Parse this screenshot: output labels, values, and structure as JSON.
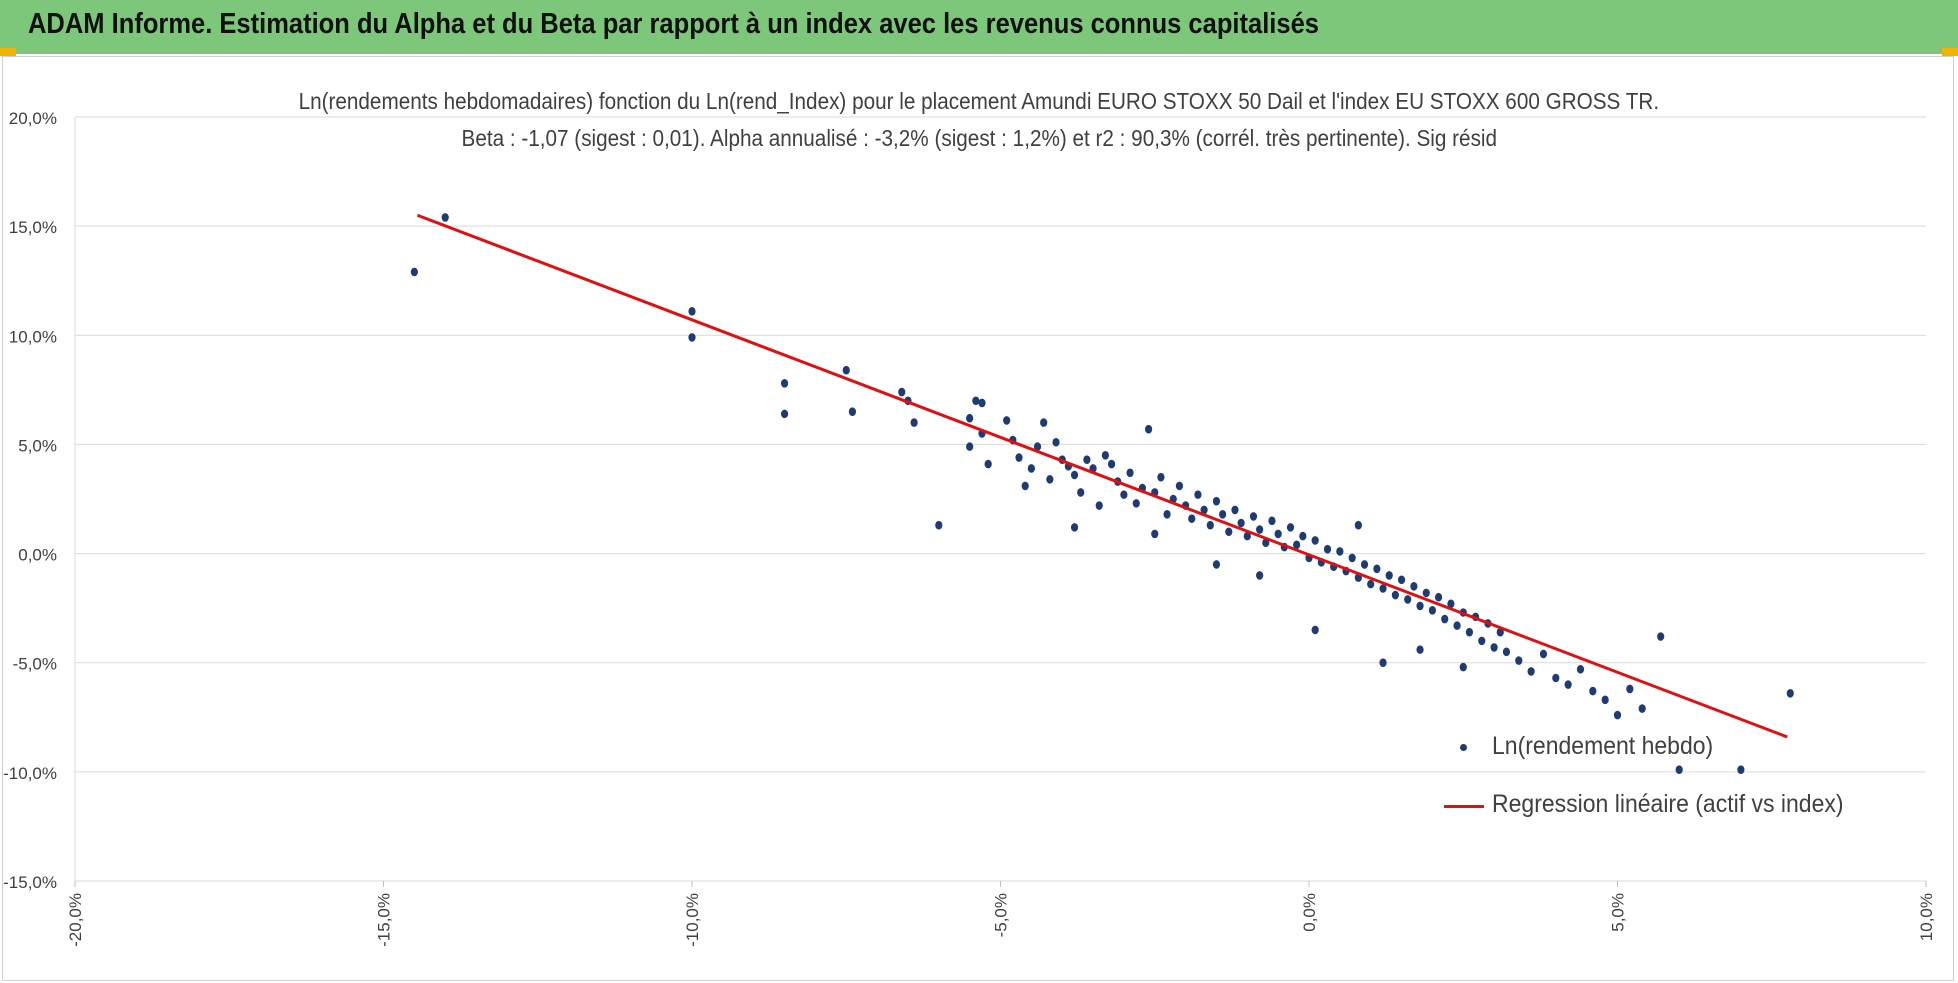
{
  "banner": {
    "title": "ADAM Informe. Estimation du Alpha et du Beta par rapport à un index avec les revenus connus capitalisés"
  },
  "colors": {
    "banner": "#7dc77b",
    "accent_corner": "#f0b400",
    "points": "#1f3b73",
    "regression": "#e01010",
    "grid": "#d9d9d9"
  },
  "chart_data": {
    "type": "scatter",
    "title": "Ln(rendements hebdomadaires) fonction du Ln(rend_Index) pour le placement Amundi EURO STOXX 50 Dail et l'index EU STOXX 600 GROSS TR.",
    "subtitle": "Beta : -1,07 (sigest : 0,01). Alpha annualisé : -3,2% (sigest : 1,2%) et r2 : 90,3% (corrél. très pertinente). Sig résid",
    "xlabel": "",
    "ylabel": "",
    "xlim": [
      -0.2,
      0.1
    ],
    "ylim": [
      -0.15,
      0.2
    ],
    "x_ticks": [
      "-20,0%",
      "-15,0%",
      "-10,0%",
      "-5,0%",
      "0,0%",
      "5,0%",
      "10,0%"
    ],
    "y_ticks": [
      "20,0%",
      "15,0%",
      "10,0%",
      "5,0%",
      "0,0%",
      "-5,0%",
      "-10,0%",
      "-15,0%"
    ],
    "grid": "horizontal",
    "legend_position": "bottom-right",
    "series": [
      {
        "name": "Ln(rendement hebdo)",
        "kind": "scatter",
        "points": [
          [
            -0.14,
            0.154
          ],
          [
            -0.145,
            0.129
          ],
          [
            -0.1,
            0.111
          ],
          [
            -0.1,
            0.099
          ],
          [
            -0.085,
            0.078
          ],
          [
            -0.085,
            0.064
          ],
          [
            -0.075,
            0.084
          ],
          [
            -0.074,
            0.065
          ],
          [
            -0.066,
            0.074
          ],
          [
            -0.065,
            0.07
          ],
          [
            -0.064,
            0.06
          ],
          [
            -0.06,
            0.013
          ],
          [
            -0.055,
            0.062
          ],
          [
            -0.055,
            0.049
          ],
          [
            -0.054,
            0.07
          ],
          [
            -0.053,
            0.069
          ],
          [
            -0.053,
            0.055
          ],
          [
            -0.052,
            0.041
          ],
          [
            -0.049,
            0.061
          ],
          [
            -0.048,
            0.052
          ],
          [
            -0.047,
            0.044
          ],
          [
            -0.046,
            0.031
          ],
          [
            -0.045,
            0.039
          ],
          [
            -0.044,
            0.049
          ],
          [
            -0.043,
            0.06
          ],
          [
            -0.042,
            0.034
          ],
          [
            -0.041,
            0.051
          ],
          [
            -0.04,
            0.043
          ],
          [
            -0.039,
            0.04
          ],
          [
            -0.038,
            0.036
          ],
          [
            -0.037,
            0.028
          ],
          [
            -0.036,
            0.043
          ],
          [
            -0.035,
            0.039
          ],
          [
            -0.034,
            0.022
          ],
          [
            -0.033,
            0.045
          ],
          [
            -0.032,
            0.041
          ],
          [
            -0.031,
            0.033
          ],
          [
            -0.03,
            0.027
          ],
          [
            -0.029,
            0.037
          ],
          [
            -0.028,
            0.023
          ],
          [
            -0.027,
            0.03
          ],
          [
            -0.026,
            0.057
          ],
          [
            -0.025,
            0.028
          ],
          [
            -0.024,
            0.035
          ],
          [
            -0.023,
            0.018
          ],
          [
            -0.022,
            0.025
          ],
          [
            -0.021,
            0.031
          ],
          [
            -0.02,
            0.022
          ],
          [
            -0.019,
            0.016
          ],
          [
            -0.018,
            0.027
          ],
          [
            -0.017,
            0.02
          ],
          [
            -0.016,
            0.013
          ],
          [
            -0.015,
            0.024
          ],
          [
            -0.014,
            0.018
          ],
          [
            -0.013,
            0.01
          ],
          [
            -0.012,
            0.02
          ],
          [
            -0.011,
            0.014
          ],
          [
            -0.01,
            0.008
          ],
          [
            -0.009,
            0.017
          ],
          [
            -0.008,
            0.011
          ],
          [
            -0.007,
            0.005
          ],
          [
            -0.006,
            0.015
          ],
          [
            -0.005,
            0.009
          ],
          [
            -0.004,
            0.003
          ],
          [
            -0.003,
            0.012
          ],
          [
            -0.002,
            0.004
          ],
          [
            -0.001,
            0.008
          ],
          [
            0.0,
            -0.002
          ],
          [
            0.001,
            0.006
          ],
          [
            0.002,
            -0.004
          ],
          [
            0.003,
            0.002
          ],
          [
            0.004,
            -0.006
          ],
          [
            0.005,
            0.001
          ],
          [
            0.006,
            -0.008
          ],
          [
            0.007,
            -0.002
          ],
          [
            0.008,
            -0.011
          ],
          [
            0.009,
            -0.005
          ],
          [
            0.01,
            -0.014
          ],
          [
            0.011,
            -0.007
          ],
          [
            0.012,
            -0.016
          ],
          [
            0.013,
            -0.01
          ],
          [
            0.014,
            -0.019
          ],
          [
            0.015,
            -0.012
          ],
          [
            0.016,
            -0.021
          ],
          [
            0.017,
            -0.015
          ],
          [
            0.018,
            -0.024
          ],
          [
            0.019,
            -0.018
          ],
          [
            0.02,
            -0.026
          ],
          [
            0.021,
            -0.02
          ],
          [
            0.022,
            -0.03
          ],
          [
            0.023,
            -0.023
          ],
          [
            0.024,
            -0.033
          ],
          [
            0.025,
            -0.027
          ],
          [
            0.026,
            -0.036
          ],
          [
            0.027,
            -0.029
          ],
          [
            0.028,
            -0.04
          ],
          [
            0.029,
            -0.032
          ],
          [
            0.03,
            -0.043
          ],
          [
            0.031,
            -0.036
          ],
          [
            0.032,
            -0.045
          ],
          [
            0.034,
            -0.049
          ],
          [
            0.036,
            -0.054
          ],
          [
            0.038,
            -0.046
          ],
          [
            0.04,
            -0.057
          ],
          [
            0.042,
            -0.06
          ],
          [
            0.044,
            -0.053
          ],
          [
            0.046,
            -0.063
          ],
          [
            0.048,
            -0.067
          ],
          [
            0.05,
            -0.074
          ],
          [
            0.052,
            -0.062
          ],
          [
            0.054,
            -0.071
          ],
          [
            0.057,
            -0.038
          ],
          [
            0.06,
            -0.099
          ],
          [
            0.07,
            -0.099
          ],
          [
            0.078,
            -0.064
          ],
          [
            0.012,
            -0.05
          ],
          [
            0.001,
            -0.035
          ],
          [
            -0.025,
            0.009
          ],
          [
            -0.008,
            -0.01
          ],
          [
            0.018,
            -0.044
          ],
          [
            -0.038,
            0.012
          ],
          [
            0.008,
            0.013
          ],
          [
            -0.015,
            -0.005
          ],
          [
            0.025,
            -0.052
          ]
        ]
      },
      {
        "name": "Regression linéaire (actif vs index)",
        "kind": "line",
        "points": [
          [
            -0.1445,
            0.155
          ],
          [
            0.0775,
            -0.084
          ]
        ]
      }
    ]
  }
}
